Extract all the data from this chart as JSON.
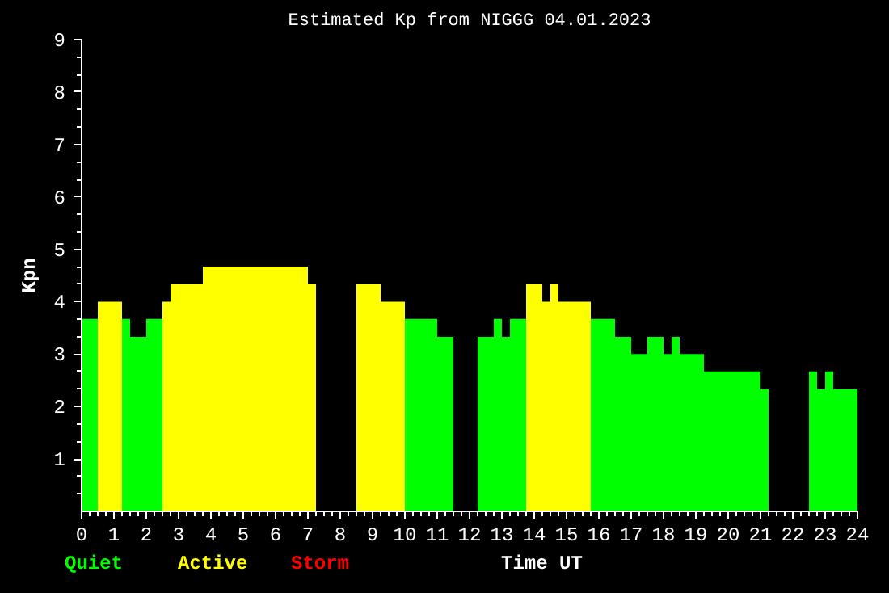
{
  "chart_data": {
    "type": "histogram",
    "title": "Estimated Kp from NIGGG 04.01.2023",
    "xlabel": "Time UT",
    "ylabel": "Kpn",
    "bins": [
      0,
      0.5,
      1.25,
      1.5,
      2,
      2.5,
      2.75,
      3.75,
      7,
      7.25,
      8.5,
      9.25,
      10,
      11,
      11.5,
      12.25,
      12.75,
      13,
      13.25,
      13.75,
      14.25,
      14.5,
      14.75,
      15.75,
      16.5,
      17,
      17.5,
      18,
      18.25,
      18.5,
      19.25,
      21,
      21.25,
      22.5,
      22.75,
      23,
      23.25,
      24
    ],
    "series": [
      {
        "name": "Quiet",
        "color": "#00ff00",
        "values": [
          3.67,
          null,
          3.67,
          3.33,
          3.67,
          null,
          null,
          null,
          null,
          null,
          null,
          null,
          3.67,
          3.33,
          null,
          3.33,
          3.67,
          3.33,
          3.67,
          null,
          null,
          null,
          null,
          3.67,
          3.33,
          3,
          3.33,
          3,
          3.33,
          3,
          2.67,
          2.33,
          null,
          2.67,
          2.33,
          2.67,
          2.33
        ]
      },
      {
        "name": "Active",
        "color": "#ffff00",
        "values": [
          null,
          4,
          null,
          null,
          null,
          4,
          4.33,
          4.67,
          4.33,
          null,
          4.33,
          4,
          null,
          null,
          null,
          null,
          null,
          null,
          null,
          4.33,
          4,
          4.33,
          4,
          null,
          null,
          null,
          null,
          null,
          null,
          null,
          null,
          null,
          null,
          null,
          null,
          null,
          null
        ]
      }
    ],
    "annotations": [
      "Storm"
    ],
    "xlim": [
      0,
      24
    ],
    "ylim": [
      0,
      9
    ],
    "xticks": [
      0,
      {
        "value": 0.25,
        "label": null
      },
      {
        "value": 0.5,
        "label": null
      },
      {
        "value": 0.75,
        "label": null
      },
      1,
      {
        "value": 1.25,
        "label": null
      },
      {
        "value": 1.5,
        "label": null
      },
      {
        "value": 1.75,
        "label": null
      },
      2,
      {
        "value": 2.25,
        "label": null
      },
      {
        "value": 2.5,
        "label": null
      },
      {
        "value": 2.75,
        "label": null
      },
      3,
      {
        "value": 3.25,
        "label": null
      },
      {
        "value": 3.5,
        "label": null
      },
      {
        "value": 3.75,
        "label": null
      },
      4,
      {
        "value": 4.25,
        "label": null
      },
      {
        "value": 4.5,
        "label": null
      },
      {
        "value": 4.75,
        "label": null
      },
      5,
      {
        "value": 5.25,
        "label": null
      },
      {
        "value": 5.5,
        "label": null
      },
      {
        "value": 5.75,
        "label": null
      },
      6,
      {
        "value": 6.25,
        "label": null
      },
      {
        "value": 6.5,
        "label": null
      },
      {
        "value": 6.75,
        "label": null
      },
      7,
      {
        "value": 7.25,
        "label": null
      },
      {
        "value": 7.5,
        "label": null
      },
      {
        "value": 7.75,
        "label": null
      },
      8,
      {
        "value": 8.25,
        "label": null
      },
      {
        "value": 8.5,
        "label": null
      },
      {
        "value": 8.75,
        "label": null
      },
      9,
      {
        "value": 9.25,
        "label": null
      },
      {
        "value": 9.5,
        "label": null
      },
      {
        "value": 9.75,
        "label": null
      },
      10,
      {
        "value": 10.25,
        "label": null
      },
      {
        "value": 10.5,
        "label": null
      },
      {
        "value": 10.75,
        "label": null
      },
      11,
      {
        "value": 11.25,
        "label": null
      },
      {
        "value": 11.5,
        "label": null
      },
      {
        "value": 11.75,
        "label": null
      },
      12,
      {
        "value": 12.25,
        "label": null
      },
      {
        "value": 12.5,
        "label": null
      },
      {
        "value": 12.75,
        "label": null
      },
      13,
      {
        "value": 13.25,
        "label": null
      },
      {
        "value": 13.5,
        "label": null
      },
      {
        "value": 13.75,
        "label": null
      },
      14,
      {
        "value": 14.25,
        "label": null
      },
      {
        "value": 14.5,
        "label": null
      },
      {
        "value": 14.75,
        "label": null
      },
      15,
      {
        "value": 15.25,
        "label": null
      },
      {
        "value": 15.5,
        "label": null
      },
      {
        "value": 15.75,
        "label": null
      },
      16,
      {
        "value": 16.25,
        "label": null
      },
      {
        "value": 16.5,
        "label": null
      },
      {
        "value": 16.75,
        "label": null
      },
      17,
      {
        "value": 17.25,
        "label": null
      },
      {
        "value": 17.5,
        "label": null
      },
      {
        "value": 17.75,
        "label": null
      },
      18,
      {
        "value": 18.25,
        "label": null
      },
      {
        "value": 18.5,
        "label": null
      },
      {
        "value": 18.75,
        "label": null
      },
      19,
      {
        "value": 19.25,
        "label": null
      },
      {
        "value": 19.5,
        "label": null
      },
      {
        "value": 19.75,
        "label": null
      },
      20,
      {
        "value": 20.25,
        "label": null
      },
      {
        "value": 20.5,
        "label": null
      },
      {
        "value": 20.75,
        "label": null
      },
      21,
      {
        "value": 21.25,
        "label": null
      },
      {
        "value": 21.5,
        "label": null
      },
      {
        "value": 21.75,
        "label": null
      },
      22,
      {
        "value": 22.25,
        "label": null
      },
      {
        "value": 22.5,
        "label": null
      },
      {
        "value": 22.75,
        "label": null
      },
      23,
      {
        "value": 23.25,
        "label": null
      },
      {
        "value": 23.5,
        "label": null
      },
      {
        "value": 23.75,
        "label": null
      },
      24
    ],
    "yticks": [
      {
        "value": 0.333,
        "label": null
      },
      {
        "value": 0.667,
        "label": null
      },
      1,
      {
        "value": 1.333,
        "label": null
      },
      {
        "value": 1.667,
        "label": null
      },
      2,
      {
        "value": 2.333,
        "label": null
      },
      {
        "value": 2.667,
        "label": null
      },
      3,
      {
        "value": 3.333,
        "label": null
      },
      {
        "value": 3.667,
        "label": null
      },
      4,
      {
        "value": 4.333,
        "label": null
      },
      {
        "value": 4.667,
        "label": null
      },
      5,
      {
        "value": 5.333,
        "label": null
      },
      {
        "value": 5.667,
        "label": null
      },
      6,
      {
        "value": 6.333,
        "label": null
      },
      {
        "value": 6.667,
        "label": null
      },
      7,
      {
        "value": 7.333,
        "label": null
      },
      {
        "value": 7.667,
        "label": null
      },
      8,
      {
        "value": 8.333,
        "label": null
      },
      {
        "value": 8.667,
        "label": null
      },
      9
    ],
    "grid": false
  }
}
